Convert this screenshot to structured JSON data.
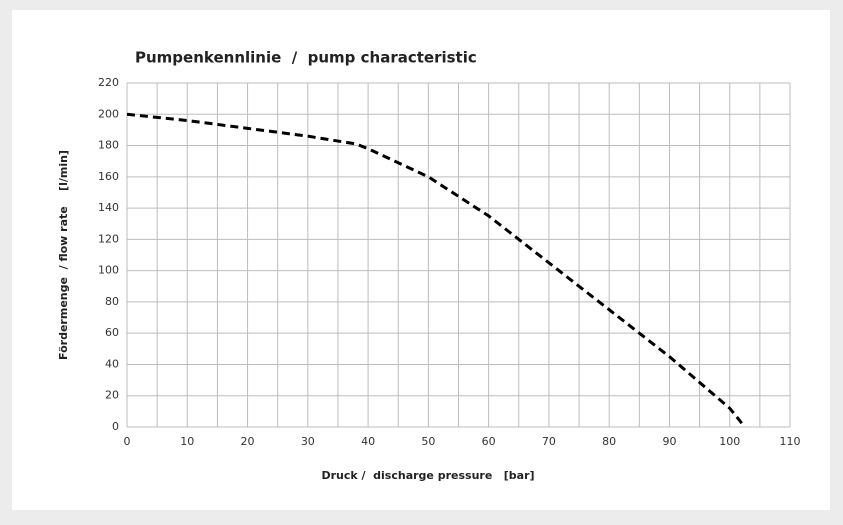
{
  "chart_data": {
    "type": "line",
    "title": "Pumpenkennlinie  /  pump characteristic",
    "xlabel": "Druck /  discharge pressure   [bar]",
    "ylabel": "Fördermenge  / flow rate    [l/min]",
    "x": [
      0,
      10,
      20,
      30,
      38,
      40,
      50,
      60,
      70,
      80,
      90,
      100,
      102.5
    ],
    "series": [
      {
        "color": "#000000",
        "values": [
          200,
          196,
          191,
          186,
          181,
          178,
          160,
          135,
          105,
          75,
          45,
          12,
          0
        ]
      }
    ],
    "xlim": [
      0,
      110
    ],
    "xticks": [
      0,
      10,
      20,
      30,
      40,
      50,
      60,
      70,
      80,
      90,
      100,
      110
    ],
    "xminor": [
      5,
      15,
      25,
      35,
      45,
      55,
      65,
      75,
      85,
      95,
      105
    ],
    "ylim": [
      0,
      220
    ],
    "yticks": [
      0,
      20,
      40,
      60,
      80,
      100,
      120,
      140,
      160,
      180,
      200,
      220
    ],
    "grid": true,
    "dashed": true
  }
}
